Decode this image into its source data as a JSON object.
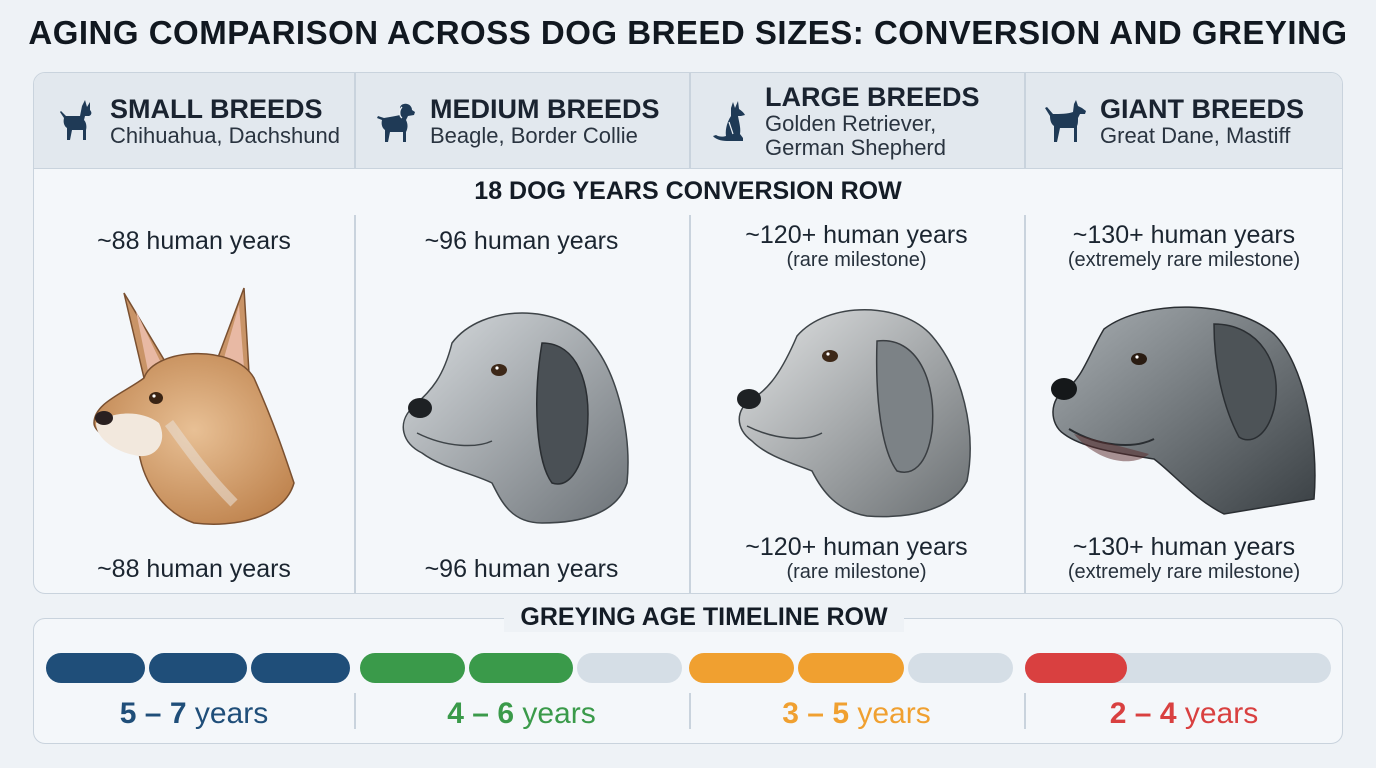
{
  "title": "AGING COMPARISON ACROSS DOG BREED SIZES: CONVERSION AND GREYING",
  "conversion_title": "18 DOG YEARS CONVERSION ROW",
  "greying_title": "GREYING AGE TIMELINE ROW",
  "breeds": [
    {
      "name": "SMALL BREEDS",
      "examples": [
        "Chihuahua, Dachshund"
      ],
      "icon": "chihuahua-icon",
      "human_years_top": "~88 human years",
      "note_top": "",
      "human_years_bottom": "~88 human years",
      "note_bottom": "",
      "greying_from": "5",
      "greying_to": "7",
      "greying_unit": "years",
      "greying_color": "#1f4e79",
      "timeline_filled_segments": 3,
      "timeline_total_segments": 3
    },
    {
      "name": "MEDIUM BREEDS",
      "examples": [
        "Beagle, Border Collie"
      ],
      "icon": "beagle-icon",
      "human_years_top": "~96 human years",
      "note_top": "",
      "human_years_bottom": "~96 human years",
      "note_bottom": "",
      "greying_from": "4",
      "greying_to": "6",
      "greying_unit": "years",
      "greying_color": "#3a9a4a",
      "timeline_filled_segments": 2,
      "timeline_total_segments": 3
    },
    {
      "name": "LARGE BREEDS",
      "examples": [
        "Golden Retriever,",
        "German Shepherd"
      ],
      "icon": "shepherd-icon",
      "human_years_top": "~120+ human years",
      "note_top": "(rare milestone)",
      "human_years_bottom": "~120+ human years",
      "note_bottom": "(rare milestone)",
      "greying_from": "3",
      "greying_to": "5",
      "greying_unit": "years",
      "greying_color": "#f0a030",
      "timeline_filled_segments": 2,
      "timeline_total_segments": 3
    },
    {
      "name": "GIANT BREEDS",
      "examples": [
        "Great Dane, Mastiff"
      ],
      "icon": "great-dane-icon",
      "human_years_top": "~130+ human years",
      "note_top": "(extremely rare milestone)",
      "human_years_bottom": "~130+ human years",
      "note_bottom": "(extremely rare milestone)",
      "greying_from": "2",
      "greying_to": "4",
      "greying_unit": "years",
      "greying_color": "#d94040",
      "timeline_filled_segments": 1,
      "timeline_total_segments": 3
    }
  ],
  "colors": {
    "track_empty": "#d5dee6",
    "border": "#c9d3dd"
  }
}
